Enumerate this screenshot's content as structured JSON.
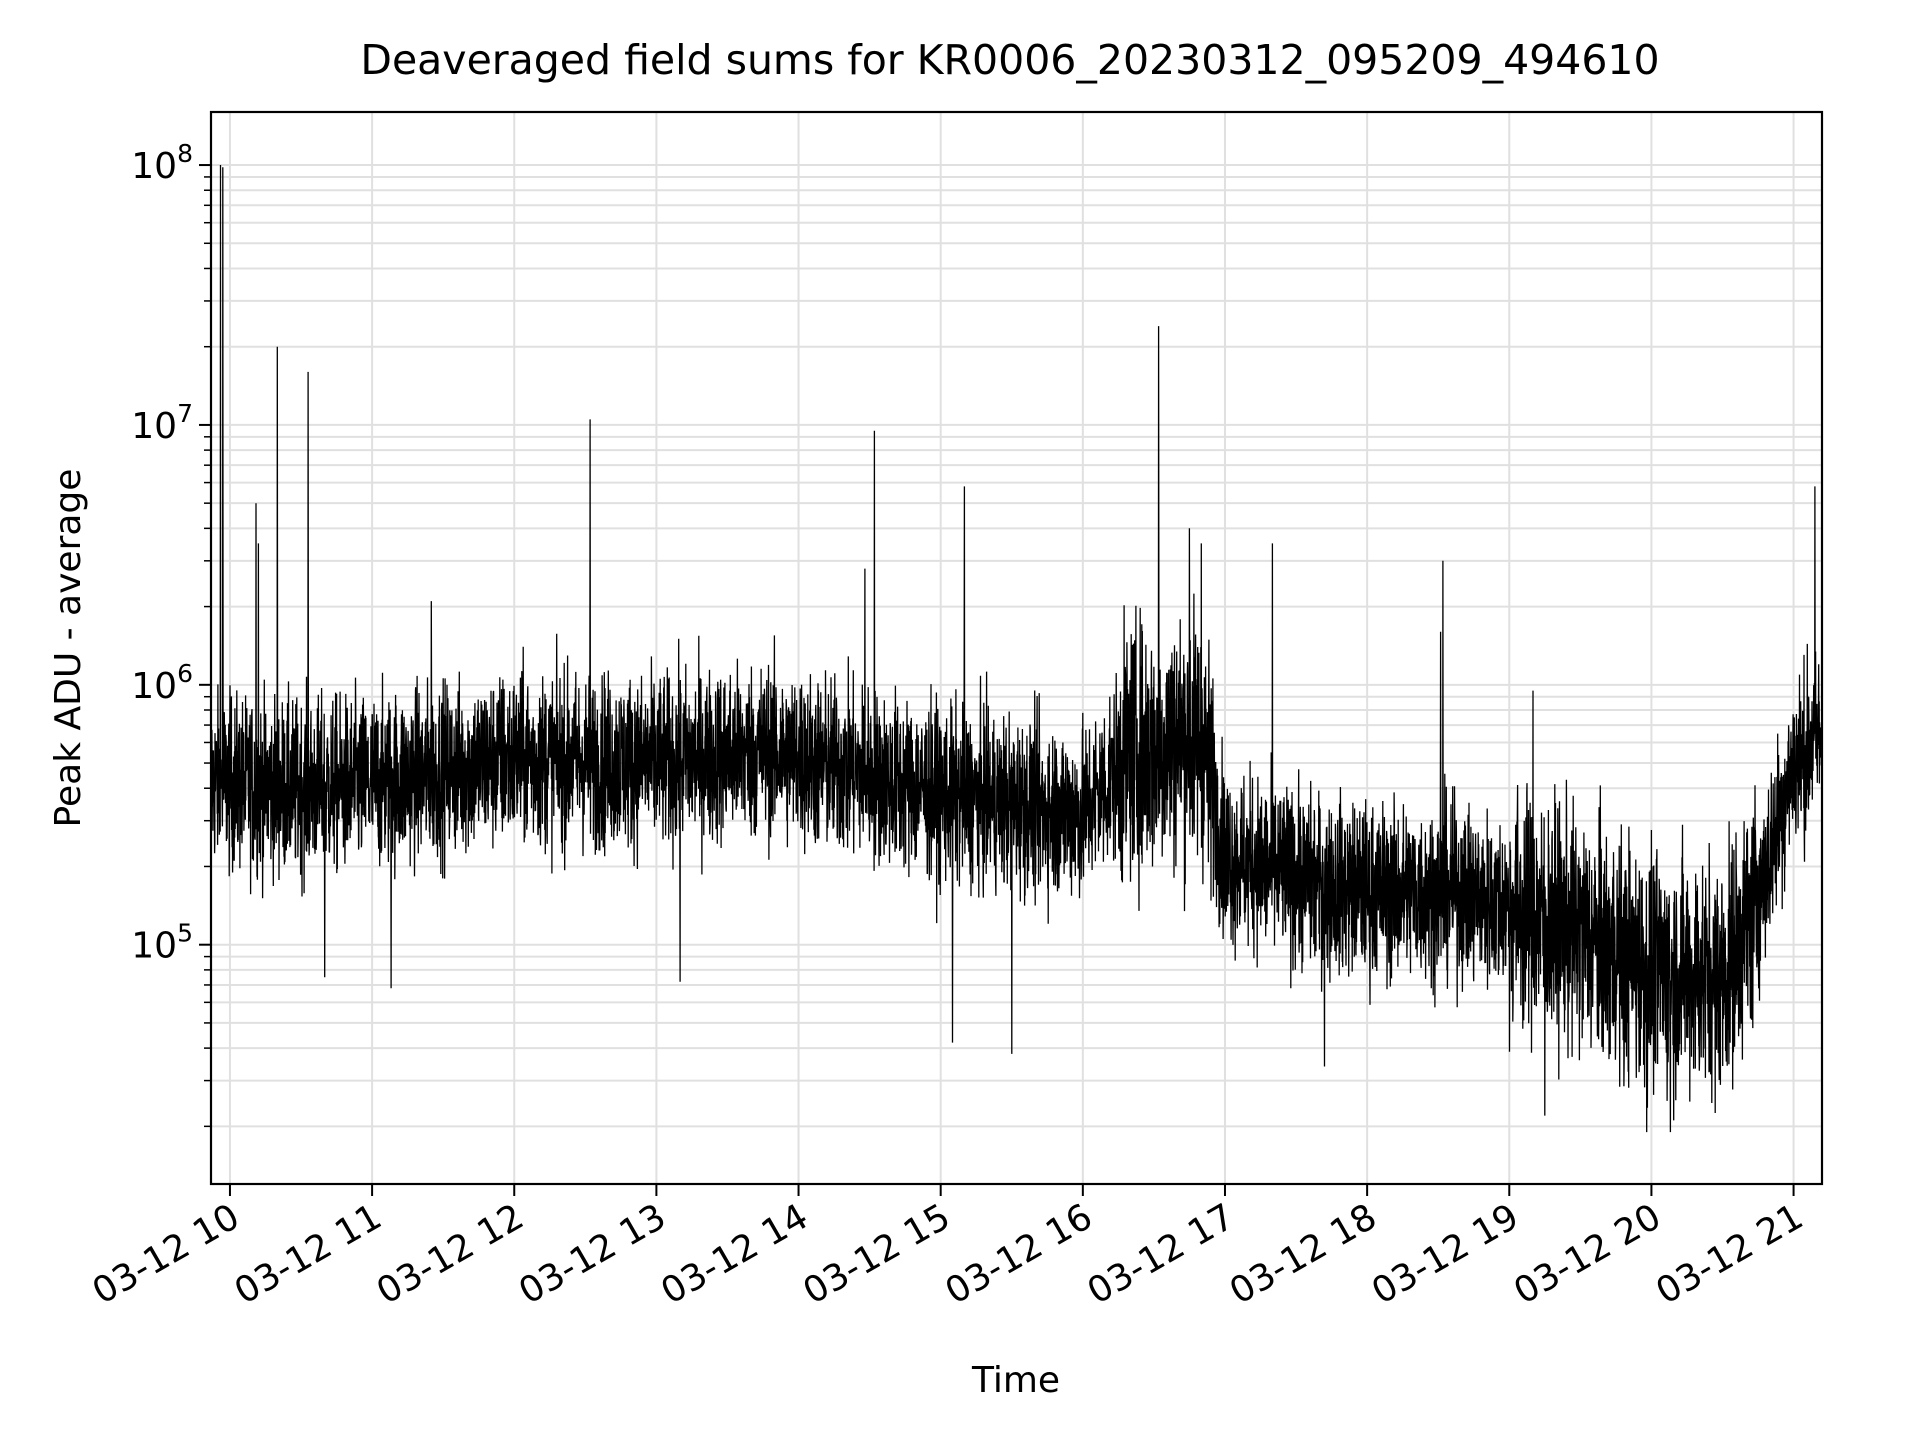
{
  "chart_data": {
    "type": "line",
    "title": "Deaveraged field sums for KR0006_20230312_095209_494610",
    "xlabel": "Time",
    "ylabel": "Peak ADU - average",
    "y_scale": "log",
    "grid": true,
    "line_color": "#000000",
    "grid_color": "#e0e0e0",
    "xlim": [
      "03-12 09:52",
      "03-12 21:12"
    ],
    "ylim": [
      12000,
      160000000
    ],
    "x_ticks": [
      {
        "time": "03-12 10:00",
        "label": "03-12 10"
      },
      {
        "time": "03-12 11:00",
        "label": "03-12 11"
      },
      {
        "time": "03-12 12:00",
        "label": "03-12 12"
      },
      {
        "time": "03-12 13:00",
        "label": "03-12 13"
      },
      {
        "time": "03-12 14:00",
        "label": "03-12 14"
      },
      {
        "time": "03-12 15:00",
        "label": "03-12 15"
      },
      {
        "time": "03-12 16:00",
        "label": "03-12 16"
      },
      {
        "time": "03-12 17:00",
        "label": "03-12 17"
      },
      {
        "time": "03-12 18:00",
        "label": "03-12 18"
      },
      {
        "time": "03-12 19:00",
        "label": "03-12 19"
      },
      {
        "time": "03-12 20:00",
        "label": "03-12 20"
      },
      {
        "time": "03-12 21:00",
        "label": "03-12 21"
      }
    ],
    "y_ticks": [
      {
        "value": 100000,
        "base": "10",
        "exp": "5"
      },
      {
        "value": 1000000,
        "base": "10",
        "exp": "6"
      },
      {
        "value": 10000000,
        "base": "10",
        "exp": "7"
      },
      {
        "value": 100000000,
        "base": "10",
        "exp": "8"
      }
    ],
    "baseline": [
      {
        "time": "03-12 09:52",
        "value": 420000
      },
      {
        "time": "03-12 10:30",
        "value": 400000
      },
      {
        "time": "03-12 11:00",
        "value": 420000
      },
      {
        "time": "03-12 12:00",
        "value": 520000
      },
      {
        "time": "03-12 13:00",
        "value": 500000
      },
      {
        "time": "03-12 13:45",
        "value": 560000
      },
      {
        "time": "03-12 14:30",
        "value": 450000
      },
      {
        "time": "03-12 15:00",
        "value": 380000
      },
      {
        "time": "03-12 16:00",
        "value": 320000
      },
      {
        "time": "03-12 16:20",
        "value": 550000
      },
      {
        "time": "03-12 16:50",
        "value": 650000
      },
      {
        "time": "03-12 17:00",
        "value": 220000
      },
      {
        "time": "03-12 17:40",
        "value": 170000
      },
      {
        "time": "03-12 18:00",
        "value": 160000
      },
      {
        "time": "03-12 18:40",
        "value": 160000
      },
      {
        "time": "03-12 19:00",
        "value": 140000
      },
      {
        "time": "03-12 19:30",
        "value": 110000
      },
      {
        "time": "03-12 20:00",
        "value": 80000
      },
      {
        "time": "03-12 20:30",
        "value": 75000
      },
      {
        "time": "03-12 20:45",
        "value": 150000
      },
      {
        "time": "03-12 21:00",
        "value": 500000
      },
      {
        "time": "03-12 21:12",
        "value": 650000
      }
    ],
    "spikes": [
      {
        "time": "03-12 09:56",
        "value": 100000000
      },
      {
        "time": "03-12 09:57",
        "value": 98000000
      },
      {
        "time": "03-12 10:11",
        "value": 5000000
      },
      {
        "time": "03-12 10:12",
        "value": 3500000
      },
      {
        "time": "03-12 10:20",
        "value": 20000000
      },
      {
        "time": "03-12 10:33",
        "value": 16000000
      },
      {
        "time": "03-12 11:25",
        "value": 2100000
      },
      {
        "time": "03-12 12:32",
        "value": 10500000
      },
      {
        "time": "03-12 14:28",
        "value": 2800000
      },
      {
        "time": "03-12 14:32",
        "value": 9500000
      },
      {
        "time": "03-12 15:10",
        "value": 5800000
      },
      {
        "time": "03-12 16:32",
        "value": 24000000
      },
      {
        "time": "03-12 16:45",
        "value": 4000000
      },
      {
        "time": "03-12 16:50",
        "value": 3500000
      },
      {
        "time": "03-12 17:20",
        "value": 3500000
      },
      {
        "time": "03-12 18:32",
        "value": 3000000
      },
      {
        "time": "03-12 18:31",
        "value": 1600000
      },
      {
        "time": "03-12 19:10",
        "value": 950000
      },
      {
        "time": "03-12 21:09",
        "value": 5800000
      }
    ],
    "dips": [
      {
        "time": "03-12 10:40",
        "value": 75000
      },
      {
        "time": "03-12 11:08",
        "value": 68000
      },
      {
        "time": "03-12 13:10",
        "value": 72000
      },
      {
        "time": "03-12 15:05",
        "value": 42000
      },
      {
        "time": "03-12 15:30",
        "value": 38000
      },
      {
        "time": "03-12 17:42",
        "value": 34000
      },
      {
        "time": "03-12 19:15",
        "value": 22000
      },
      {
        "time": "03-12 19:58",
        "value": 19000
      },
      {
        "time": "03-12 20:08",
        "value": 19000
      }
    ]
  }
}
